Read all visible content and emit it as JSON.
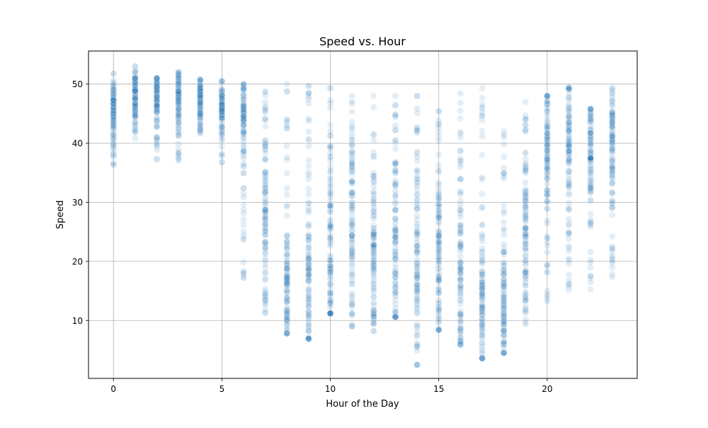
{
  "chart_data": {
    "type": "scatter",
    "title": "Speed vs. Hour",
    "xlabel": "Hour of the Day",
    "ylabel": "Speed",
    "xlim": [
      -1.15,
      24.15
    ],
    "ylim": [
      0.2,
      55.6
    ],
    "xticks": [
      0,
      5,
      10,
      15,
      20
    ],
    "yticks": [
      10,
      20,
      30,
      40,
      50
    ],
    "grid": true,
    "point_color": "#1f77b4",
    "point_opacity": 0.12,
    "hours": [
      {
        "hour": 0,
        "min": 36.3,
        "max": 51.8,
        "center": 46.5,
        "spread": 2.5
      },
      {
        "hour": 1,
        "min": 40.8,
        "max": 53.0,
        "center": 48.0,
        "spread": 2.0
      },
      {
        "hour": 2,
        "min": 37.2,
        "max": 51.0,
        "center": 48.0,
        "spread": 2.0
      },
      {
        "hour": 3,
        "min": 37.0,
        "max": 52.0,
        "center": 48.5,
        "spread": 2.0
      },
      {
        "hour": 4,
        "min": 41.6,
        "max": 50.8,
        "center": 47.0,
        "spread": 2.0
      },
      {
        "hour": 5,
        "min": 36.7,
        "max": 50.5,
        "center": 46.0,
        "spread": 2.0
      },
      {
        "hour": 6,
        "min": 17.2,
        "max": 50.0,
        "center": 45.0,
        "spread": 3.0
      },
      {
        "hour": 7,
        "min": 11.3,
        "max": 48.7,
        "center": 28.0,
        "spread": 8.0
      },
      {
        "hour": 8,
        "min": 7.8,
        "max": 50.0,
        "center": 15.0,
        "spread": 5.0
      },
      {
        "hour": 9,
        "min": 6.9,
        "max": 49.7,
        "center": 17.0,
        "spread": 7.0
      },
      {
        "hour": 10,
        "min": 11.2,
        "max": 49.4,
        "center": 22.0,
        "spread": 9.0
      },
      {
        "hour": 11,
        "min": 9.0,
        "max": 48.0,
        "center": 24.0,
        "spread": 9.0
      },
      {
        "hour": 12,
        "min": 8.2,
        "max": 48.0,
        "center": 21.0,
        "spread": 9.0
      },
      {
        "hour": 13,
        "min": 10.6,
        "max": 48.0,
        "center": 22.0,
        "spread": 9.0
      },
      {
        "hour": 14,
        "min": 2.5,
        "max": 48.0,
        "center": 20.0,
        "spread": 9.0
      },
      {
        "hour": 15,
        "min": 8.4,
        "max": 45.4,
        "center": 21.0,
        "spread": 9.0
      },
      {
        "hour": 16,
        "min": 5.9,
        "max": 48.4,
        "center": 17.0,
        "spread": 8.0
      },
      {
        "hour": 17,
        "min": 3.6,
        "max": 49.3,
        "center": 13.0,
        "spread": 7.0
      },
      {
        "hour": 18,
        "min": 4.5,
        "max": 42.0,
        "center": 12.0,
        "spread": 5.0
      },
      {
        "hour": 19,
        "min": 9.4,
        "max": 47.0,
        "center": 24.0,
        "spread": 8.0
      },
      {
        "hour": 20,
        "min": 13.2,
        "max": 48.0,
        "center": 39.0,
        "spread": 5.0
      },
      {
        "hour": 21,
        "min": 15.2,
        "max": 49.4,
        "center": 42.0,
        "spread": 4.5
      },
      {
        "hour": 22,
        "min": 15.3,
        "max": 45.8,
        "center": 39.0,
        "spread": 4.5
      },
      {
        "hour": 23,
        "min": 17.3,
        "max": 49.3,
        "center": 42.0,
        "spread": 4.5
      }
    ]
  }
}
